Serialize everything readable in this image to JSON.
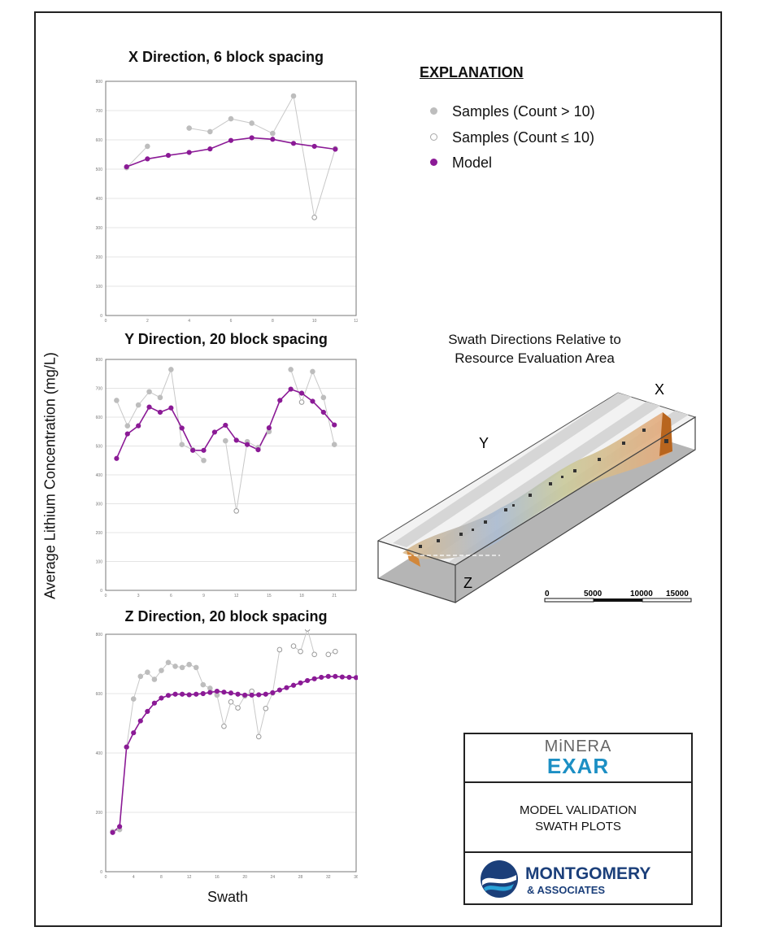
{
  "colors": {
    "sample_gray": "#bdbdbd",
    "model_purple": "#8b1a96",
    "line_gray": "#c8c8c8",
    "grid": "#e4e4e4"
  },
  "shared": {
    "ylabel": "Average Lithium Concentration (mg/L)",
    "xlabel": "Swath"
  },
  "explanation": {
    "title": "EXPLANATION",
    "items": [
      {
        "label": "Samples (Count > 10)",
        "marker": "filled-gray-dot"
      },
      {
        "label": "Samples (Count ≤ 10)",
        "marker": "hollow-gray-dot"
      },
      {
        "label": "Model",
        "marker": "filled-purple-dot"
      }
    ]
  },
  "swath_diagram": {
    "title_line1": "Swath Directions Relative to",
    "title_line2": "Resource Evaluation Area",
    "label_x": "X",
    "label_y": "Y",
    "label_z": "Z",
    "scale_ticks": [
      "0",
      "5000",
      "10000",
      "15000"
    ]
  },
  "title_block": {
    "company_logo_top": "MiNERA",
    "company_logo_bottom": "EXAR",
    "line1": "MODEL VALIDATION",
    "line2": "SWATH PLOTS",
    "firm_name": "MONTGOMERY",
    "firm_sub": "& ASSOCIATES"
  },
  "chart_data": [
    {
      "type": "line",
      "title": "X Direction, 6 block spacing",
      "xlim": [
        0,
        12
      ],
      "ylim": [
        0,
        800
      ],
      "xticks": [
        0,
        2,
        4,
        6,
        8,
        10,
        12
      ],
      "yticks": [
        0,
        100,
        200,
        300,
        400,
        500,
        600,
        700,
        800
      ],
      "grid": true,
      "series": [
        {
          "name": "Samples (Count > 10)",
          "style": "sample",
          "points": [
            [
              1,
              505
            ],
            [
              2,
              578
            ],
            null,
            [
              4,
              640
            ],
            [
              5,
              628
            ],
            [
              6,
              672
            ],
            [
              7,
              657
            ],
            [
              8,
              622
            ],
            [
              9,
              750
            ],
            [
              10,
              335
            ],
            [
              11,
              570
            ]
          ],
          "hollow_x": [
            10
          ]
        },
        {
          "name": "Model",
          "style": "model",
          "points": [
            [
              1,
              508
            ],
            [
              2,
              535
            ],
            [
              3,
              547
            ],
            [
              4,
              557
            ],
            [
              5,
              569
            ],
            [
              6,
              598
            ],
            [
              7,
              607
            ],
            [
              8,
              602
            ],
            [
              9,
              588
            ],
            [
              10,
              578
            ],
            [
              11,
              568
            ]
          ]
        }
      ]
    },
    {
      "type": "line",
      "title": "Y Direction, 20 block spacing",
      "xlim": [
        0,
        23
      ],
      "ylim": [
        0,
        800
      ],
      "xticks": [
        0,
        3,
        6,
        9,
        12,
        15,
        18,
        21
      ],
      "yticks": [
        0,
        100,
        200,
        300,
        400,
        500,
        600,
        700,
        800
      ],
      "grid": true,
      "series": [
        {
          "name": "Samples (Count > 10)",
          "style": "sample",
          "points": [
            [
              1,
              658
            ],
            [
              2,
              570
            ],
            [
              3,
              642
            ],
            [
              4,
              688
            ],
            [
              5,
              668
            ],
            [
              6,
              765
            ],
            [
              7,
              505
            ],
            [
              8,
              487
            ],
            [
              9,
              450
            ],
            null,
            [
              11,
              518
            ],
            [
              12,
              275
            ],
            [
              13,
              515
            ],
            [
              14,
              495
            ],
            [
              15,
              550
            ],
            null,
            [
              17,
              765
            ],
            [
              18,
              652
            ],
            [
              19,
              758
            ],
            [
              20,
              668
            ],
            [
              21,
              505
            ]
          ],
          "hollow_x": [
            12,
            18
          ]
        },
        {
          "name": "Model",
          "style": "model",
          "points": [
            [
              1,
              457
            ],
            [
              2,
              542
            ],
            [
              3,
              570
            ],
            [
              4,
              635
            ],
            [
              5,
              617
            ],
            [
              6,
              632
            ],
            [
              7,
              562
            ],
            [
              8,
              485
            ],
            [
              9,
              485
            ],
            [
              10,
              548
            ],
            [
              11,
              572
            ],
            [
              12,
              520
            ],
            [
              13,
              505
            ],
            [
              14,
              487
            ],
            [
              15,
              563
            ],
            [
              16,
              658
            ],
            [
              17,
              697
            ],
            [
              18,
              683
            ],
            [
              19,
              655
            ],
            [
              20,
              617
            ],
            [
              21,
              573
            ]
          ]
        }
      ]
    },
    {
      "type": "line",
      "title": "Z Direction, 20 block spacing",
      "xlim": [
        0,
        36
      ],
      "ylim": [
        0,
        800
      ],
      "xticks": [
        0,
        4,
        8,
        12,
        16,
        20,
        24,
        28,
        32,
        36
      ],
      "yticks": [
        0,
        200,
        400,
        600,
        800
      ],
      "grid": true,
      "series": [
        {
          "name": "Samples (Count > 10)",
          "style": "sample",
          "points": [
            [
              1,
              135
            ],
            [
              2,
              142
            ],
            [
              3,
              420
            ],
            [
              4,
              582
            ],
            [
              5,
              658
            ],
            [
              6,
              672
            ],
            [
              7,
              648
            ],
            [
              8,
              678
            ],
            [
              9,
              705
            ],
            [
              10,
              692
            ],
            [
              11,
              688
            ],
            [
              12,
              698
            ],
            [
              13,
              688
            ],
            [
              14,
              630
            ],
            [
              15,
              618
            ],
            [
              16,
              595
            ],
            [
              17,
              490
            ],
            [
              18,
              572
            ],
            [
              19,
              552
            ],
            [
              20,
              592
            ],
            [
              21,
              608
            ],
            [
              22,
              455
            ],
            [
              23,
              550
            ],
            [
              24,
              602
            ],
            [
              25,
              748
            ],
            null,
            [
              27,
              760
            ],
            [
              28,
              742
            ],
            [
              29,
              818
            ],
            [
              30,
              732
            ],
            null,
            [
              32,
              732
            ],
            [
              33,
              742
            ]
          ],
          "hollow_x": [
            17,
            18,
            19,
            21,
            22,
            23,
            25,
            27,
            28,
            29,
            30,
            32,
            33
          ]
        },
        {
          "name": "Model",
          "style": "model",
          "points": [
            [
              1,
              132
            ],
            [
              2,
              152
            ],
            [
              3,
              420
            ],
            [
              4,
              468
            ],
            [
              5,
              508
            ],
            [
              6,
              540
            ],
            [
              7,
              568
            ],
            [
              8,
              585
            ],
            [
              9,
              594
            ],
            [
              10,
              598
            ],
            [
              11,
              598
            ],
            [
              12,
              596
            ],
            [
              13,
              598
            ],
            [
              14,
              600
            ],
            [
              15,
              604
            ],
            [
              16,
              608
            ],
            [
              17,
              605
            ],
            [
              18,
              602
            ],
            [
              19,
              598
            ],
            [
              20,
              595
            ],
            [
              21,
              595
            ],
            [
              22,
              596
            ],
            [
              23,
              598
            ],
            [
              24,
              603
            ],
            [
              25,
              612
            ],
            [
              26,
              620
            ],
            [
              27,
              628
            ],
            [
              28,
              636
            ],
            [
              29,
              644
            ],
            [
              30,
              650
            ],
            [
              31,
              655
            ],
            [
              32,
              658
            ],
            [
              33,
              658
            ],
            [
              34,
              656
            ],
            [
              35,
              655
            ],
            [
              36,
              654
            ]
          ]
        }
      ]
    }
  ]
}
